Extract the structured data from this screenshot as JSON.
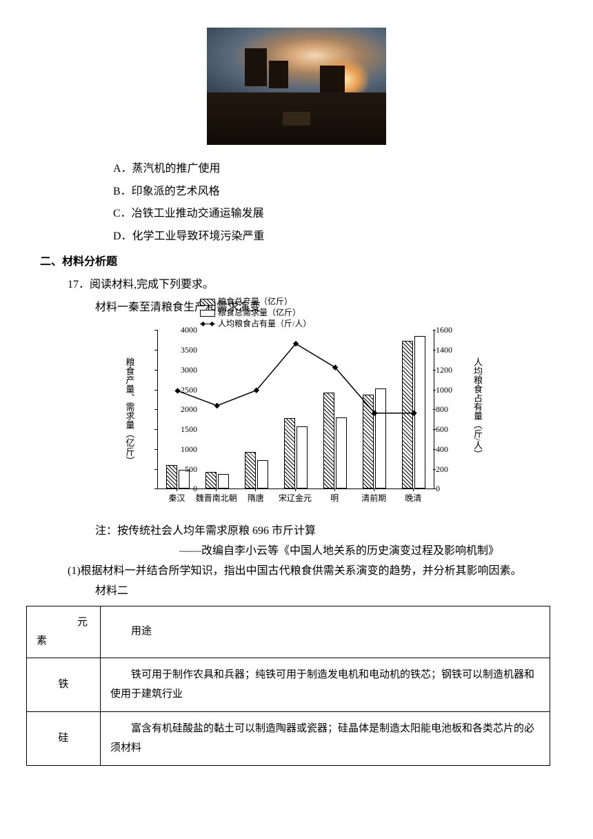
{
  "painting_alt": "夜间冶铁厂油画",
  "options": {
    "A": "A．蒸汽机的推广使用",
    "B": "B．印象派的艺术风格",
    "C": "C．冶铁工业推动交通运输发展",
    "D": "D．化学工业导致环境污染严重"
  },
  "section2": "二、材料分析题",
  "q17": "17．阅读材料,完成下列要求。",
  "mat1_title": "材料一秦至清粮食生产和需求演变",
  "legend": {
    "prod": "粮食总产量（亿斤）",
    "demand": "粮食总需求量（亿斤）",
    "percap": "人均粮食占有量（斤/人）"
  },
  "axes": {
    "left_label": "粮食产量、需求量（亿斤）",
    "right_label": "人均粮食占有量（斤/人）",
    "left_ticks": [
      0,
      500,
      1000,
      1500,
      2000,
      2500,
      3000,
      3500,
      4000
    ],
    "left_max": 4000,
    "right_ticks": [
      0,
      200,
      400,
      600,
      800,
      1000,
      1200,
      1400,
      1600
    ],
    "right_max": 1600,
    "categories": [
      "秦汉",
      "魏晋南北朝",
      "隋唐",
      "宋辽金元",
      "明",
      "清前期",
      "晚清"
    ]
  },
  "series": {
    "production": [
      590,
      430,
      920,
      1780,
      2430,
      2380,
      3730
    ],
    "demand": [
      470,
      380,
      720,
      1570,
      1800,
      2520,
      3850
    ],
    "percapita": [
      985,
      835,
      990,
      1460,
      1220,
      760,
      760
    ]
  },
  "note": "注：按传统社会人均年需求原粮 696 市斤计算",
  "source": "——改编自李小云等《中国人地关系的历史演变过程及影响机制》",
  "q1": "(1)根据材料一并结合所学知识，指出中国古代粮食供需关系演变的趋势，并分析其影响因素。",
  "mat2_title": "材料二",
  "table": {
    "head_elem": "元素",
    "head_use": "用途",
    "rows": [
      {
        "elem": "铁",
        "use": "铁可用于制作农具和兵器；纯铁可用于制造发电机和电动机的铁芯；钢铁可以制造机器和使用于建筑行业"
      },
      {
        "elem": "硅",
        "use": "富含有机硅酸盐的黏土可以制造陶器或瓷器；硅晶体是制造太阳能电池板和各类芯片的必须材料"
      }
    ]
  },
  "colors": {
    "text": "#000000",
    "bg": "#ffffff",
    "bar_border": "#000000",
    "line": "#000000"
  }
}
